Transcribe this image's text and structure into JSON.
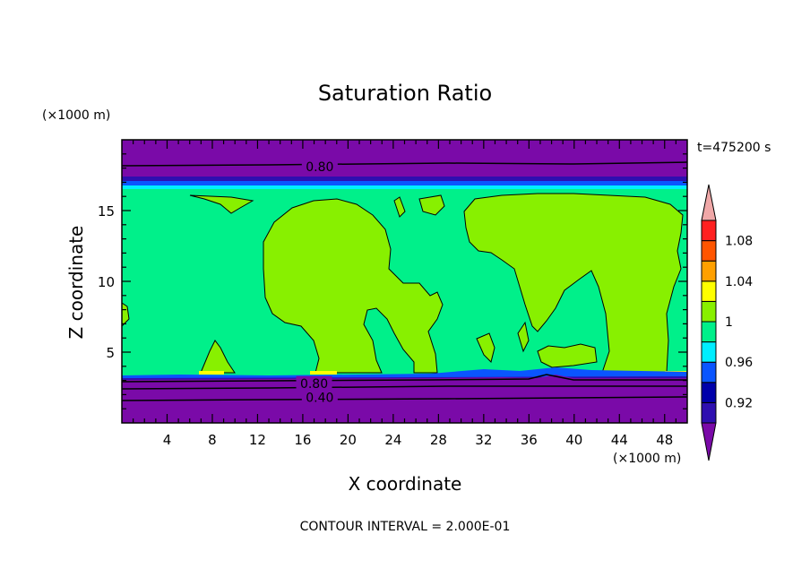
{
  "chart_data": {
    "type": "heatmap",
    "title": "Saturation Ratio",
    "xlabel": "X coordinate",
    "ylabel": "Z coordinate",
    "x_unit": "(×1000 m)",
    "y_unit": "(×1000 m)",
    "time_label": "t=475200 s",
    "footer": "CONTOUR INTERVAL = 2.000E-01",
    "xlim": [
      0,
      50
    ],
    "ylim": [
      0,
      20
    ],
    "x_ticks": [
      4,
      8,
      12,
      16,
      20,
      24,
      28,
      32,
      36,
      40,
      44,
      48
    ],
    "y_ticks": [
      5,
      10,
      15
    ],
    "contour_labels": [
      {
        "text": "0.80",
        "x": 17.5,
        "z": 18.1
      },
      {
        "text": "0.80",
        "x": 17.0,
        "z": 2.8
      },
      {
        "text": "0.40",
        "x": 17.5,
        "z": 1.8
      }
    ],
    "colorbar": {
      "colors": [
        "#7a0aa8",
        "#2e0fb0",
        "#0000aa",
        "#0a55ff",
        "#00eeff",
        "#00f08a",
        "#88f000",
        "#ffff00",
        "#ffa000",
        "#ff5500",
        "#ff2020",
        "#f0a8a8"
      ],
      "labels": [
        "0.92",
        "0.96",
        "1",
        "1.04",
        "1.08"
      ]
    },
    "regions": {
      "below_0.92": "purple layers: top 16.9–20 km and bottom 0–3.4 km",
      "1.0_to_1.02": "green plumes near x 0–4, 10–27, 24–42, 38–50 km",
      "0.98_to_1.0": "mint background 3.4–16.5 km"
    }
  }
}
